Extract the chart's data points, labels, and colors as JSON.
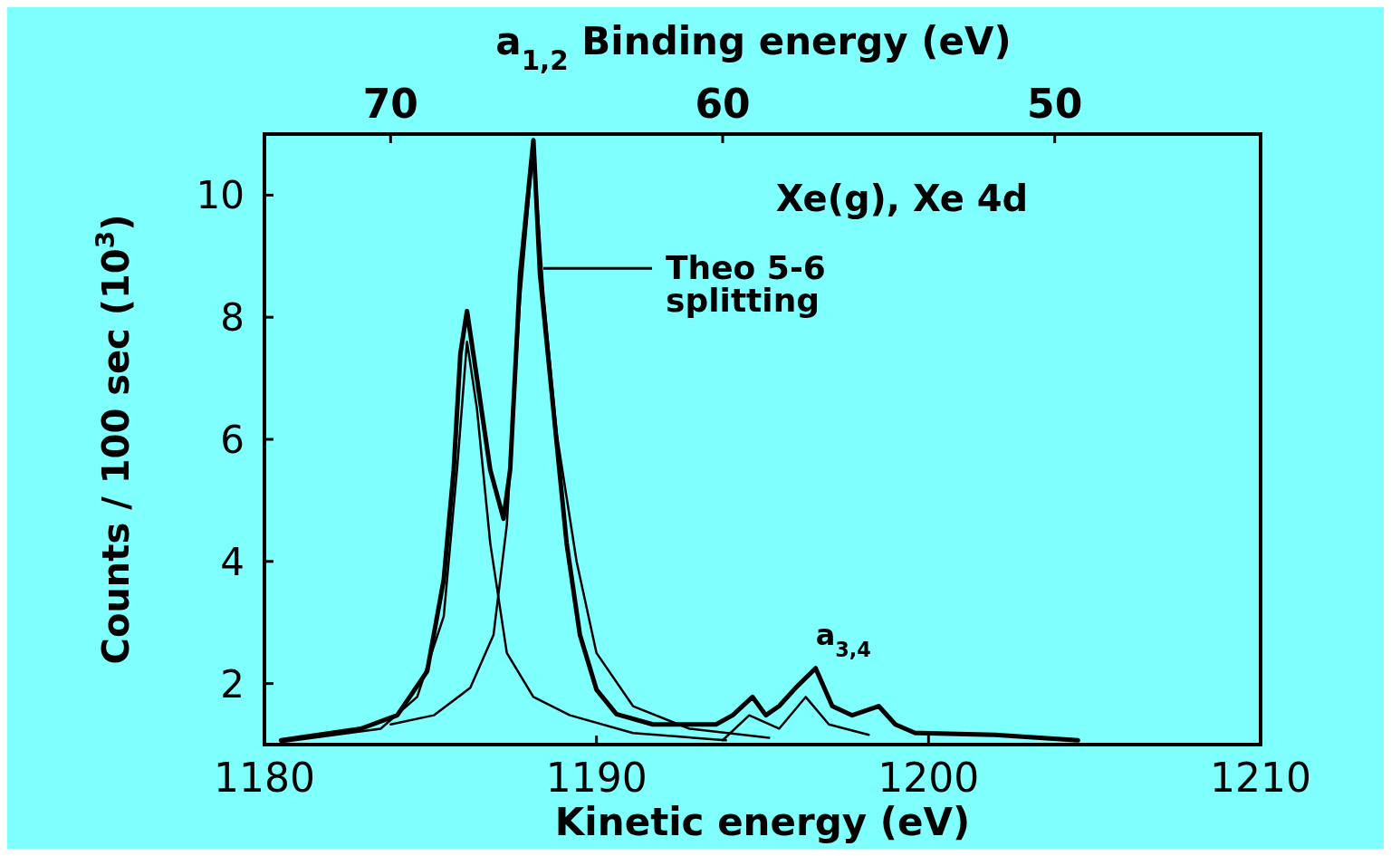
{
  "chart_data": {
    "type": "line",
    "xlabel": "Kinetic energy (eV)",
    "ylabel": "Counts / 100 sec (10$^{3}$)",
    "x2label": "a$_{1,2}$  Binding energy (eV)",
    "xlim": [
      1180,
      1210
    ],
    "xticks": [
      1180,
      1190,
      1200,
      1210
    ],
    "x2lim": [
      73.8,
      43.8
    ],
    "x2ticks": [
      70,
      60,
      50
    ],
    "ylim": [
      1,
      11
    ],
    "yticks": [
      2,
      4,
      6,
      8,
      10
    ],
    "marker": "none",
    "line_style": "solid",
    "annotations": [
      "Xe(g), Xe 4d",
      "Theo 5-6\nsplitting",
      {
        "text": "a$_{3,4}$",
        "x": 1196.6,
        "y": 2.3
      }
    ],
    "series": [
      {
        "color": "#000000",
        "x": [
          1180.5,
          1182.9,
          1184.0,
          1184.9,
          1185.4,
          1185.7,
          1185.9,
          1186.1,
          1186.4,
          1186.8,
          1187.2,
          1187.4,
          1187.7,
          1188.1,
          1188.3,
          1188.7,
          1189.1,
          1189.5,
          1190.0,
          1190.6,
          1191.7,
          1193.6,
          1194.1,
          1194.7,
          1195.1,
          1195.5,
          1196.0,
          1196.6,
          1197.1,
          1197.7,
          1198.5,
          1199.0,
          1199.6,
          1202.0,
          1204.5
        ],
        "values": [
          1.07,
          1.26,
          1.48,
          2.2,
          3.7,
          5.5,
          7.4,
          8.1,
          7.0,
          5.5,
          4.7,
          5.5,
          8.7,
          10.9,
          8.7,
          6.5,
          4.3,
          2.8,
          1.9,
          1.5,
          1.33,
          1.33,
          1.48,
          1.78,
          1.48,
          1.63,
          1.93,
          2.25,
          1.63,
          1.48,
          1.63,
          1.33,
          1.19,
          1.16,
          1.07
        ]
      },
      {
        "color": "#000000",
        "x": [
          1180.5,
          1183.5,
          1184.6,
          1185.4,
          1185.8,
          1186.1,
          1186.4,
          1186.8,
          1187.3,
          1188.1,
          1189.2,
          1191.1,
          1193.9
        ],
        "values": [
          1.04,
          1.26,
          1.78,
          3.1,
          5.5,
          7.6,
          6.5,
          4.3,
          2.5,
          1.78,
          1.48,
          1.19,
          1.07
        ]
      },
      {
        "color": "#000000",
        "x": [
          1183.8,
          1185.1,
          1186.2,
          1186.9,
          1187.3,
          1187.7,
          1188.1,
          1188.4,
          1188.8,
          1189.4,
          1190.0,
          1191.1,
          1192.8,
          1195.2
        ],
        "values": [
          1.33,
          1.48,
          1.93,
          2.8,
          4.6,
          8.3,
          10.8,
          8.4,
          6.1,
          4.0,
          2.5,
          1.63,
          1.26,
          1.11
        ]
      },
      {
        "color": "#000000",
        "x": [
          1193.8,
          1194.6,
          1195.5,
          1196.3,
          1197.0,
          1198.2
        ],
        "values": [
          1.07,
          1.48,
          1.26,
          1.78,
          1.33,
          1.16
        ]
      }
    ]
  }
}
